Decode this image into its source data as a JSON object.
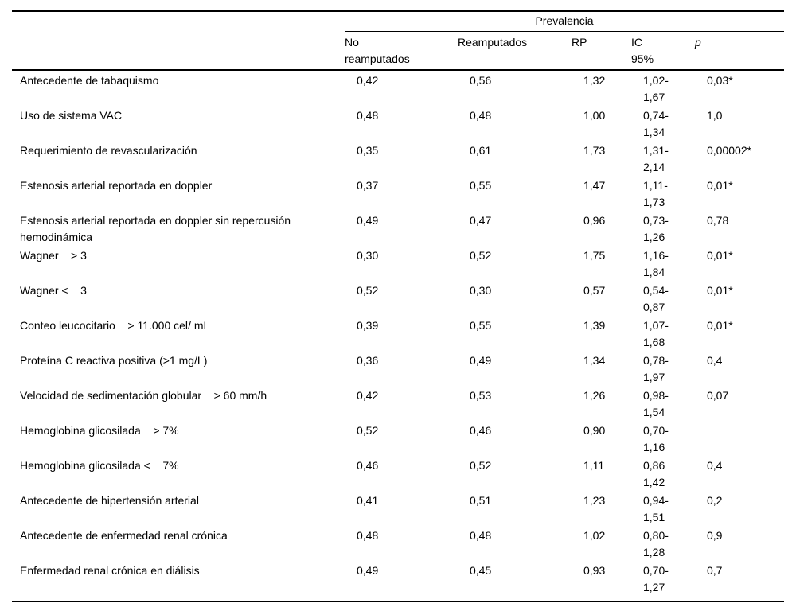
{
  "colors": {
    "text": "#000000",
    "background": "#ffffff",
    "rule": "#000000"
  },
  "table": {
    "group_header": "Prevalencia",
    "columns": {
      "label": "",
      "no_reamputados": "No\nreamputados",
      "reamputados": "Reamputados",
      "rp": "RP",
      "ic": "IC\n95%",
      "p": "p"
    },
    "rows": [
      {
        "label": "Antecedente de tabaquismo",
        "no_reamputados": "0,42",
        "reamputados": "0,56",
        "rp": "1,32",
        "ic": "1,02-\n1,67",
        "p": "0,03*"
      },
      {
        "label": "Uso de sistema VAC",
        "no_reamputados": "0,48",
        "reamputados": "0,48",
        "rp": "1,00",
        "ic": "0,74-\n1,34",
        "p": "1,0"
      },
      {
        "label": "Requerimiento de revascularización",
        "no_reamputados": "0,35",
        "reamputados": "0,61",
        "rp": "1,73",
        "ic": "1,31-\n2,14",
        "p": "0,00002*"
      },
      {
        "label": "Estenosis arterial reportada en doppler",
        "no_reamputados": "0,37",
        "reamputados": "0,55",
        "rp": "1,47",
        "ic": "1,11-\n1,73",
        "p": "0,01*"
      },
      {
        "label": "Estenosis arterial reportada en doppler sin repercusión\nhemodinámica",
        "no_reamputados": "0,49",
        "reamputados": "0,47",
        "rp": "0,96",
        "ic": "0,73-\n1,26",
        "p": "0,78"
      },
      {
        "label": "Wagner    > 3",
        "no_reamputados": "0,30",
        "reamputados": "0,52",
        "rp": "1,75",
        "ic": "1,16-\n1,84",
        "p": "0,01*"
      },
      {
        "label": "Wagner <    3",
        "no_reamputados": "0,52",
        "reamputados": "0,30",
        "rp": "0,57",
        "ic": "0,54-\n0,87",
        "p": "0,01*"
      },
      {
        "label": "Conteo leucocitario    > 11.000 cel/ mL",
        "no_reamputados": "0,39",
        "reamputados": "0,55",
        "rp": "1,39",
        "ic": "1,07-\n1,68",
        "p": "0,01*"
      },
      {
        "label": "Proteína C reactiva positiva (>1 mg/L)",
        "no_reamputados": "0,36",
        "reamputados": "0,49",
        "rp": "1,34",
        "ic": "0,78-\n1,97",
        "p": "0,4"
      },
      {
        "label": "Velocidad de sedimentación globular    > 60 mm/h",
        "no_reamputados": "0,42",
        "reamputados": "0,53",
        "rp": "1,26",
        "ic": "0,98-\n1,54",
        "p": "0,07"
      },
      {
        "label": "Hemoglobina glicosilada    > 7%",
        "no_reamputados": "0,52",
        "reamputados": "0,46",
        "rp": "0,90",
        "ic": "0,70-\n1,16",
        "p": ""
      },
      {
        "label": "Hemoglobina glicosilada <    7%",
        "no_reamputados": "0,46",
        "reamputados": "0,52",
        "rp": "1,11",
        "ic": "0,86\n1,42",
        "p": "0,4"
      },
      {
        "label": "Antecedente de hipertensión arterial",
        "no_reamputados": "0,41",
        "reamputados": "0,51",
        "rp": "1,23",
        "ic": "0,94-\n1,51",
        "p": "0,2"
      },
      {
        "label": "Antecedente de enfermedad renal crónica",
        "no_reamputados": "0,48",
        "reamputados": "0,48",
        "rp": "1,02",
        "ic": "0,80-\n1,28",
        "p": "0,9"
      },
      {
        "label": "Enfermedad renal crónica en diálisis",
        "no_reamputados": "0,49",
        "reamputados": "0,45",
        "rp": "0,93",
        "ic": "0,70-\n1,27",
        "p": "0,7"
      }
    ]
  }
}
